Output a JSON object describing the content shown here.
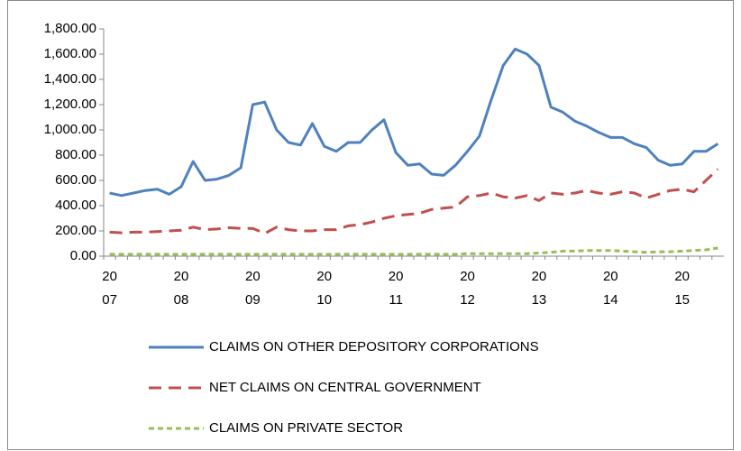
{
  "chart_data": {
    "type": "line",
    "categories": [
      [
        "20",
        "07"
      ],
      null,
      null,
      null,
      null,
      null,
      [
        "20",
        "08"
      ],
      null,
      null,
      null,
      null,
      null,
      [
        "20",
        "09"
      ],
      null,
      null,
      null,
      null,
      null,
      [
        "20",
        "10"
      ],
      null,
      null,
      null,
      null,
      null,
      [
        "20",
        "11"
      ],
      null,
      null,
      null,
      null,
      null,
      [
        "20",
        "12"
      ],
      null,
      null,
      null,
      null,
      null,
      [
        "20",
        "13"
      ],
      null,
      null,
      null,
      null,
      null,
      [
        "20",
        "14"
      ],
      null,
      null,
      null,
      null,
      null,
      [
        "20",
        "15"
      ],
      null,
      null,
      null
    ],
    "series": [
      {
        "name": "CLAIMS ON OTHER DEPOSITORY CORPORATIONS",
        "color": "#4f81bd",
        "dash": "none",
        "values": [
          500,
          480,
          500,
          520,
          530,
          490,
          550,
          750,
          600,
          610,
          640,
          700,
          1200,
          1220,
          1000,
          900,
          880,
          1050,
          870,
          830,
          900,
          900,
          1000,
          1080,
          820,
          720,
          730,
          650,
          640,
          720,
          830,
          950,
          1240,
          1510,
          1640,
          1600,
          1510,
          1180,
          1140,
          1070,
          1030,
          980,
          940,
          940,
          890,
          860,
          760,
          720,
          730,
          830,
          830,
          890
        ]
      },
      {
        "name": "NET CLAIMS ON CENTRAL GOVERNMENT",
        "color": "#c0504d",
        "dash": "long",
        "values": [
          190,
          185,
          190,
          190,
          195,
          200,
          205,
          230,
          210,
          215,
          225,
          220,
          220,
          180,
          230,
          210,
          200,
          200,
          210,
          210,
          240,
          250,
          270,
          300,
          320,
          330,
          340,
          370,
          380,
          390,
          470,
          480,
          500,
          470,
          460,
          480,
          440,
          500,
          490,
          500,
          520,
          500,
          490,
          510,
          500,
          460,
          490,
          520,
          530,
          510,
          600,
          690
        ]
      },
      {
        "name": "CLAIMS ON PRIVATE SECTOR",
        "color": "#9bbb59",
        "dash": "short",
        "values": [
          15,
          15,
          15,
          15,
          15,
          15,
          15,
          15,
          15,
          15,
          15,
          15,
          15,
          15,
          15,
          15,
          15,
          15,
          15,
          15,
          15,
          15,
          15,
          15,
          15,
          15,
          15,
          15,
          15,
          15,
          20,
          20,
          20,
          20,
          20,
          20,
          25,
          30,
          40,
          40,
          45,
          45,
          45,
          40,
          35,
          30,
          35,
          35,
          40,
          45,
          50,
          65
        ]
      }
    ],
    "ylim": [
      0,
      1800
    ],
    "yticks": [
      {
        "value": 0,
        "label": "0.00"
      },
      {
        "value": 200,
        "label": "200.00"
      },
      {
        "value": 400,
        "label": "400.00"
      },
      {
        "value": 600,
        "label": "600.00"
      },
      {
        "value": 800,
        "label": "800.00"
      },
      {
        "value": 1000,
        "label": "1,000.00"
      },
      {
        "value": 1200,
        "label": "1,200.00"
      },
      {
        "value": 1400,
        "label": "1,400.00"
      },
      {
        "value": 1600,
        "label": "1,600.00"
      },
      {
        "value": 1800,
        "label": "1,800.00"
      }
    ],
    "legend": "bottom"
  }
}
